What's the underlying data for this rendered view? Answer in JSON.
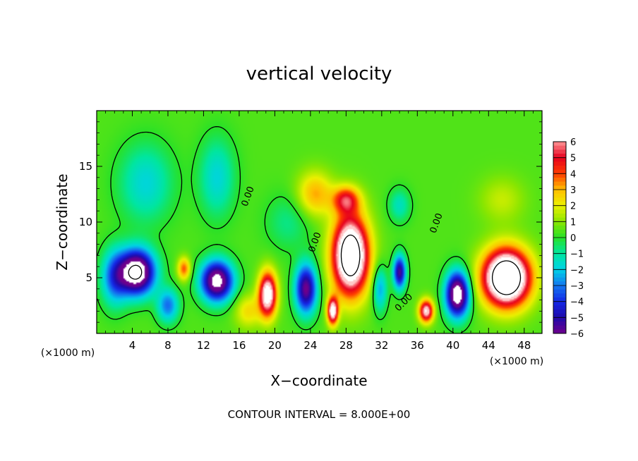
{
  "chart_data": {
    "type": "heatmap",
    "title": "vertical velocity",
    "xlabel": "X−coordinate",
    "ylabel": "Z−coordinate",
    "xunit_left": "(×1000 m)",
    "xunit_right": "(×1000 m)",
    "xlim": [
      0,
      50
    ],
    "ylim": [
      0,
      20
    ],
    "xticks": [
      4,
      8,
      12,
      16,
      20,
      24,
      28,
      32,
      36,
      40,
      44,
      48
    ],
    "yticks": [
      5,
      10,
      15
    ],
    "colorbar": {
      "min": -6,
      "max": 6,
      "ticks": [
        6,
        5,
        4,
        3,
        2,
        1,
        0,
        -1,
        -2,
        -3,
        -4,
        -5,
        -6
      ],
      "tick_labels": [
        "6",
        "5",
        "4",
        "3",
        "2",
        "1",
        "0",
        "−1",
        "−2",
        "−3",
        "−4",
        "−5",
        "−6"
      ]
    },
    "contour_label": "0.00",
    "footer": "CONTOUR INTERVAL =  8.000E+00",
    "background_value": 0.4,
    "features": [
      {
        "x": 4.5,
        "z": 5.5,
        "value": -9,
        "sx": 2.0,
        "sz": 2.0
      },
      {
        "x": 5.5,
        "z": 13.5,
        "value": -2.2,
        "sx": 3.0,
        "sz": 3.5
      },
      {
        "x": 13.5,
        "z": 14.0,
        "value": -2.2,
        "sx": 2.0,
        "sz": 3.5
      },
      {
        "x": 8.0,
        "z": 2.5,
        "value": -3.5,
        "sx": 1.2,
        "sz": 1.5
      },
      {
        "x": 9.8,
        "z": 5.8,
        "value": 3.5,
        "sx": 0.7,
        "sz": 1.0
      },
      {
        "x": 13.5,
        "z": 4.7,
        "value": -8,
        "sx": 1.8,
        "sz": 1.8
      },
      {
        "x": 19.2,
        "z": 3.5,
        "value": 7.5,
        "sx": 1.0,
        "sz": 2.0
      },
      {
        "x": 23.5,
        "z": 4.0,
        "value": -6.5,
        "sx": 1.2,
        "sz": 2.2
      },
      {
        "x": 24.5,
        "z": 12.5,
        "value": 2.8,
        "sx": 2.0,
        "sz": 2.0
      },
      {
        "x": 28.5,
        "z": 7.0,
        "value": 10,
        "sx": 2.0,
        "sz": 3.5
      },
      {
        "x": 28.0,
        "z": 12.0,
        "value": 4.0,
        "sx": 1.5,
        "sz": 1.2
      },
      {
        "x": 26.5,
        "z": 2.0,
        "value": 7,
        "sx": 0.6,
        "sz": 1.2
      },
      {
        "x": 31.8,
        "z": 4.0,
        "value": -3.0,
        "sx": 0.8,
        "sz": 2.0
      },
      {
        "x": 34.0,
        "z": 5.5,
        "value": -6,
        "sx": 0.7,
        "sz": 1.5
      },
      {
        "x": 34.0,
        "z": 11.5,
        "value": -1.8,
        "sx": 1.2,
        "sz": 1.5
      },
      {
        "x": 37.0,
        "z": 2.0,
        "value": 6.5,
        "sx": 0.8,
        "sz": 1.0
      },
      {
        "x": 40.5,
        "z": 3.5,
        "value": -8.5,
        "sx": 1.3,
        "sz": 2.0
      },
      {
        "x": 46.0,
        "z": 5.0,
        "value": 11,
        "sx": 2.6,
        "sz": 2.5
      },
      {
        "x": 45.5,
        "z": 12.0,
        "value": 1.2,
        "sx": 2.5,
        "sz": 2.0
      },
      {
        "x": 2.0,
        "z": 5.0,
        "value": -3.5,
        "sx": 1.5,
        "sz": 2.5
      },
      {
        "x": 21.5,
        "z": 10.0,
        "value": -1.2,
        "sx": 2.5,
        "sz": 2.5
      },
      {
        "x": 17.0,
        "z": 2.0,
        "value": 2.0,
        "sx": 1.5,
        "sz": 1.5
      }
    ]
  }
}
